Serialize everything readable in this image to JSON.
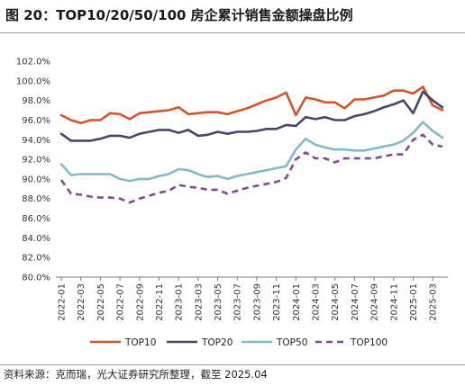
{
  "figure": {
    "title": "图 20：TOP10/20/50/100 房企累计销售金额操盘比例",
    "source": "资料来源：克而瑞，光大证券研究所整理，截至 2025.04"
  },
  "chart_data": {
    "type": "line",
    "title": "图 20：TOP10/20/50/100 房企累计销售金额操盘比例",
    "xlabel": "",
    "ylabel": "",
    "ylim": [
      80.0,
      102.0
    ],
    "y_ticks": [
      "80.0%",
      "82.0%",
      "84.0%",
      "86.0%",
      "88.0%",
      "90.0%",
      "92.0%",
      "94.0%",
      "96.0%",
      "98.0%",
      "100.0%",
      "102.0%"
    ],
    "x_tick_labels": [
      "2022-01",
      "2022-03",
      "2022-05",
      "2022-07",
      "2022-09",
      "2022-11",
      "2023-01",
      "2023-03",
      "2023-05",
      "2023-07",
      "2023-09",
      "2023-11",
      "2024-01",
      "2024-03",
      "2024-05",
      "2024-07",
      "2024-09",
      "2024-11",
      "2025-01",
      "2025-03"
    ],
    "x": [
      "2022-01",
      "2022-02",
      "2022-03",
      "2022-04",
      "2022-05",
      "2022-06",
      "2022-07",
      "2022-08",
      "2022-09",
      "2022-10",
      "2022-11",
      "2022-12",
      "2023-01",
      "2023-02",
      "2023-03",
      "2023-04",
      "2023-05",
      "2023-06",
      "2023-07",
      "2023-08",
      "2023-09",
      "2023-10",
      "2023-11",
      "2023-12",
      "2024-01",
      "2024-02",
      "2024-03",
      "2024-04",
      "2024-05",
      "2024-06",
      "2024-07",
      "2024-08",
      "2024-09",
      "2024-10",
      "2024-11",
      "2024-12",
      "2025-01",
      "2025-02",
      "2025-03",
      "2025-04"
    ],
    "grid": false,
    "legend": "bottom",
    "series": [
      {
        "name": "TOP10",
        "color": "#d4542b",
        "dash": "solid",
        "values": [
          96.5,
          96.0,
          95.7,
          96.0,
          96.0,
          96.7,
          96.6,
          96.1,
          96.7,
          96.8,
          96.9,
          97.0,
          97.3,
          96.6,
          96.7,
          96.8,
          96.8,
          96.6,
          96.9,
          97.2,
          97.6,
          98.0,
          98.3,
          98.8,
          96.5,
          98.3,
          98.1,
          97.8,
          97.8,
          97.2,
          98.1,
          98.1,
          98.3,
          98.5,
          99.0,
          99.0,
          98.7,
          99.4,
          97.5,
          97.0
        ]
      },
      {
        "name": "TOP20",
        "color": "#4a4668",
        "dash": "solid",
        "values": [
          94.6,
          93.9,
          93.9,
          93.9,
          94.1,
          94.4,
          94.4,
          94.2,
          94.6,
          94.8,
          95.0,
          95.0,
          94.7,
          95.0,
          94.4,
          94.5,
          94.8,
          94.6,
          94.8,
          94.8,
          94.9,
          95.1,
          95.1,
          95.5,
          95.4,
          96.3,
          96.1,
          96.3,
          96.0,
          96.0,
          96.4,
          96.6,
          96.9,
          97.3,
          97.6,
          98.0,
          96.7,
          98.9,
          98.0,
          97.3
        ]
      },
      {
        "name": "TOP50",
        "color": "#86b9c7",
        "dash": "solid",
        "values": [
          91.5,
          90.4,
          90.5,
          90.5,
          90.5,
          90.5,
          90.0,
          89.8,
          90.0,
          90.0,
          90.3,
          90.5,
          91.0,
          90.9,
          90.5,
          90.2,
          90.3,
          90.0,
          90.3,
          90.5,
          90.7,
          90.9,
          91.1,
          91.3,
          93.0,
          94.1,
          93.5,
          93.2,
          93.0,
          93.0,
          92.9,
          92.9,
          93.1,
          93.3,
          93.5,
          93.9,
          94.7,
          95.8,
          94.9,
          94.2
        ]
      },
      {
        "name": "TOP100",
        "color": "#7d4d8f",
        "dash": "dashed",
        "values": [
          89.9,
          88.5,
          88.4,
          88.2,
          88.1,
          88.1,
          88.0,
          87.6,
          88.0,
          88.3,
          88.6,
          88.8,
          89.4,
          89.2,
          89.1,
          88.9,
          88.9,
          88.5,
          88.8,
          89.1,
          89.3,
          89.5,
          89.7,
          90.1,
          92.0,
          92.7,
          92.1,
          92.1,
          91.7,
          92.1,
          92.1,
          92.1,
          92.1,
          92.3,
          92.5,
          92.5,
          94.0,
          94.5,
          93.5,
          93.3
        ]
      }
    ]
  }
}
